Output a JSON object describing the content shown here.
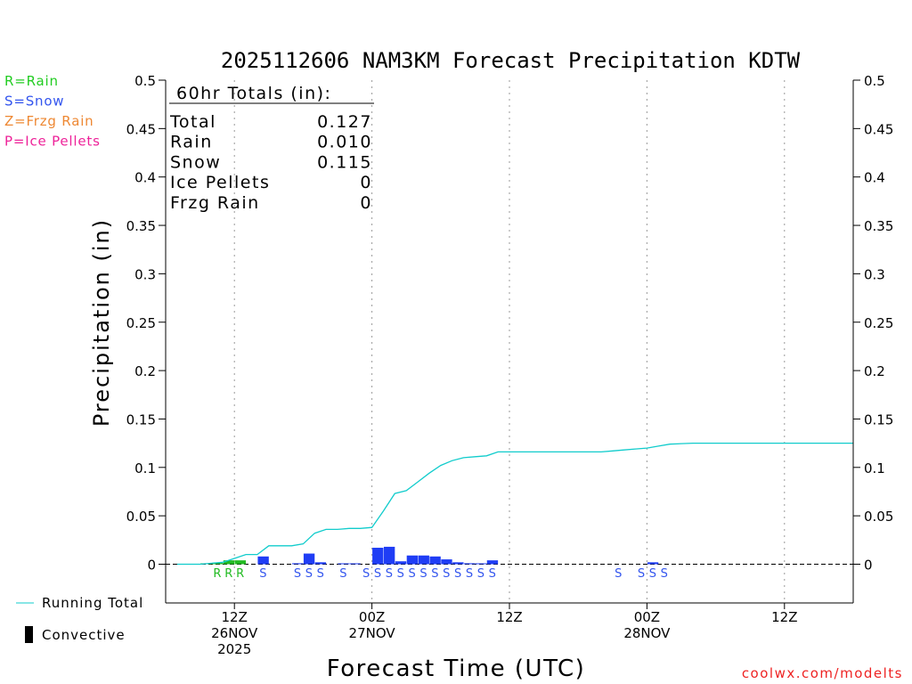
{
  "chart_data": {
    "type": "bar",
    "title": "2025112606 NAM3KM Forecast Precipitation KDTW",
    "xlabel": "Forecast Time (UTC)",
    "ylabel": "Precipitation (in)",
    "ylim": [
      -0.04,
      0.5
    ],
    "yticks": [
      "0.5",
      "0.45",
      "0.4",
      "0.35",
      "0.3",
      "0.25",
      "0.2",
      "0.15",
      "0.1",
      "0.05",
      "0"
    ],
    "ytick_values": [
      0.5,
      0.45,
      0.4,
      0.35,
      0.3,
      0.25,
      0.2,
      0.15,
      0.1,
      0.05,
      0
    ],
    "xlim_hours": [
      6,
      66
    ],
    "xticks": [
      {
        "hour": 12,
        "line1": "12Z",
        "line2": "26NOV",
        "line3": "2025"
      },
      {
        "hour": 24,
        "line1": "00Z",
        "line2": "27NOV",
        "line3": ""
      },
      {
        "hour": 36,
        "line1": "12Z",
        "line2": "",
        "line3": ""
      },
      {
        "hour": 48,
        "line1": "00Z",
        "line2": "28NOV",
        "line3": ""
      },
      {
        "hour": 60,
        "line1": "12Z",
        "line2": "",
        "line3": ""
      }
    ],
    "legend": [
      {
        "label": "R=Rain",
        "color": "#22cc22"
      },
      {
        "label": "S=Snow",
        "color": "#3355ee"
      },
      {
        "label": "Z=Frzg Rain",
        "color": "#ee8833"
      },
      {
        "label": "P=Ice Pellets",
        "color": "#ee2299"
      }
    ],
    "series_legend": {
      "running_total": "Running Total",
      "convective": "Convective"
    },
    "totals": {
      "header": "60hr Totals (in):",
      "rows": [
        {
          "label": "Total",
          "value": "0.127"
        },
        {
          "label": "Rain",
          "value": "0.010"
        },
        {
          "label": "Snow",
          "value": "0.115"
        },
        {
          "label": "Ice Pellets",
          "value": "0"
        },
        {
          "label": "Frzg Rain",
          "value": "0"
        }
      ]
    },
    "colors": {
      "rain": "#22bb22",
      "snow": "#1f3df5",
      "running_total": "#11cccc"
    },
    "bars": [
      {
        "hour": 10,
        "value": 0.0005,
        "type": "rain"
      },
      {
        "hour": 11,
        "value": 0.0015,
        "type": "rain"
      },
      {
        "hour": 12,
        "value": 0.004,
        "type": "rain"
      },
      {
        "hour": 13,
        "value": 0.004,
        "type": "rain"
      },
      {
        "hour": 15,
        "value": 0.008,
        "type": "snow"
      },
      {
        "hour": 18,
        "value": 0.001,
        "type": "snow"
      },
      {
        "hour": 19,
        "value": 0.011,
        "type": "snow"
      },
      {
        "hour": 20,
        "value": 0.002,
        "type": "snow"
      },
      {
        "hour": 22,
        "value": 0.0005,
        "type": "snow"
      },
      {
        "hour": 23,
        "value": 0.0005,
        "type": "snow"
      },
      {
        "hour": 25,
        "value": 0.017,
        "type": "snow"
      },
      {
        "hour": 26,
        "value": 0.018,
        "type": "snow"
      },
      {
        "hour": 27,
        "value": 0.003,
        "type": "snow"
      },
      {
        "hour": 28,
        "value": 0.009,
        "type": "snow"
      },
      {
        "hour": 29,
        "value": 0.009,
        "type": "snow"
      },
      {
        "hour": 30,
        "value": 0.008,
        "type": "snow"
      },
      {
        "hour": 31,
        "value": 0.005,
        "type": "snow"
      },
      {
        "hour": 32,
        "value": 0.002,
        "type": "snow"
      },
      {
        "hour": 33,
        "value": 0.001,
        "type": "snow"
      },
      {
        "hour": 34,
        "value": 0.0005,
        "type": "snow"
      },
      {
        "hour": 35,
        "value": 0.004,
        "type": "snow"
      },
      {
        "hour": 49,
        "value": 0.002,
        "type": "snow"
      }
    ],
    "running_total": {
      "hours": [
        7,
        8,
        9,
        10,
        11,
        12,
        13,
        14,
        15,
        16,
        17,
        18,
        19,
        20,
        21,
        22,
        23,
        24,
        25,
        26,
        27,
        28,
        29,
        30,
        31,
        32,
        33,
        34,
        35,
        36,
        37,
        38,
        39,
        40,
        41,
        42,
        43,
        44,
        45,
        46,
        47,
        48,
        49,
        50,
        52,
        54,
        56,
        58,
        60,
        62,
        64,
        66
      ],
      "values": [
        0,
        0,
        0,
        0.001,
        0.002,
        0.006,
        0.01,
        0.01,
        0.019,
        0.019,
        0.019,
        0.021,
        0.032,
        0.036,
        0.036,
        0.037,
        0.037,
        0.038,
        0.055,
        0.073,
        0.076,
        0.085,
        0.094,
        0.102,
        0.107,
        0.11,
        0.111,
        0.112,
        0.116,
        0.116,
        0.116,
        0.116,
        0.116,
        0.116,
        0.116,
        0.116,
        0.116,
        0.116,
        0.117,
        0.118,
        0.119,
        0.12,
        0.122,
        0.124,
        0.125,
        0.125,
        0.125,
        0.125,
        0.125,
        0.125,
        0.125,
        0.125
      ]
    },
    "ptype_letters": [
      {
        "hour": 11,
        "letter": "R",
        "type": "rain"
      },
      {
        "hour": 12,
        "letter": "R",
        "type": "rain"
      },
      {
        "hour": 13,
        "letter": "R",
        "type": "rain"
      },
      {
        "hour": 15,
        "letter": "S",
        "type": "snow"
      },
      {
        "hour": 18,
        "letter": "S",
        "type": "snow"
      },
      {
        "hour": 19,
        "letter": "S",
        "type": "snow"
      },
      {
        "hour": 20,
        "letter": "S",
        "type": "snow"
      },
      {
        "hour": 22,
        "letter": "S",
        "type": "snow"
      },
      {
        "hour": 24,
        "letter": "S",
        "type": "snow"
      },
      {
        "hour": 25,
        "letter": "S",
        "type": "snow"
      },
      {
        "hour": 26,
        "letter": "S",
        "type": "snow"
      },
      {
        "hour": 27,
        "letter": "S",
        "type": "snow"
      },
      {
        "hour": 28,
        "letter": "S",
        "type": "snow"
      },
      {
        "hour": 29,
        "letter": "S",
        "type": "snow"
      },
      {
        "hour": 30,
        "letter": "S",
        "type": "snow"
      },
      {
        "hour": 31,
        "letter": "S",
        "type": "snow"
      },
      {
        "hour": 32,
        "letter": "S",
        "type": "snow"
      },
      {
        "hour": 33,
        "letter": "S",
        "type": "snow"
      },
      {
        "hour": 34,
        "letter": "S",
        "type": "snow"
      },
      {
        "hour": 35,
        "letter": "S",
        "type": "snow"
      },
      {
        "hour": 46,
        "letter": "S",
        "type": "snow"
      },
      {
        "hour": 48,
        "letter": "S",
        "type": "snow"
      },
      {
        "hour": 49,
        "letter": "S",
        "type": "snow"
      },
      {
        "hour": 50,
        "letter": "S",
        "type": "snow"
      }
    ]
  },
  "credit": "coolwx.com/modelts"
}
